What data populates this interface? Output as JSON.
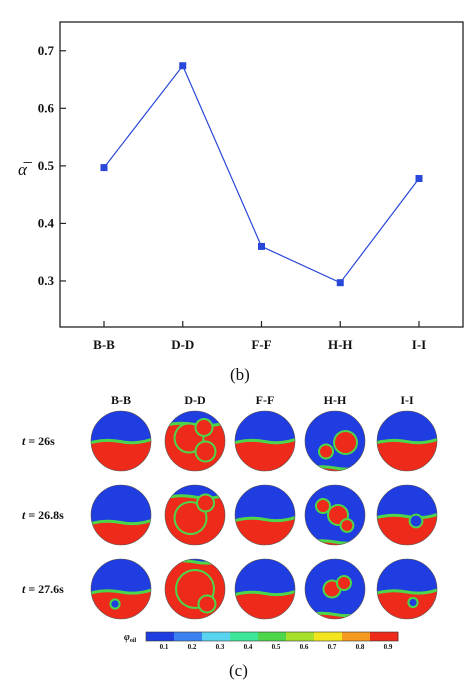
{
  "chart_data": {
    "type": "line",
    "categories": [
      "B-B",
      "D-D",
      "F-F",
      "H-H",
      "I-I"
    ],
    "series": [
      {
        "values": [
          0.497,
          0.674,
          0.36,
          0.297,
          0.478
        ]
      }
    ],
    "ylabel": "α̅",
    "ylim": [
      0.22,
      0.75
    ],
    "yticks": [
      0.3,
      0.4,
      0.5,
      0.6,
      0.7
    ],
    "series_color": "#2947d9",
    "grid": false,
    "panel_label": "(b)"
  },
  "contour_panel": {
    "panel_label": "(c)",
    "columns": [
      "B-B",
      "D-D",
      "F-F",
      "H-H",
      "I-I"
    ],
    "rows": [
      {
        "label_var": "t",
        "label_value": "= 26s"
      },
      {
        "label_var": "t",
        "label_value": "= 26.8s"
      },
      {
        "label_var": "t",
        "label_value": "= 27.6s"
      }
    ],
    "colorbar": {
      "symbol": "φ",
      "subscript": "oil",
      "ticks": [
        "0.1",
        "0.2",
        "0.3",
        "0.4",
        "0.5",
        "0.6",
        "0.7",
        "0.8",
        "0.9"
      ],
      "colors": [
        "#1f3de0",
        "#3b82f0",
        "#59d4f0",
        "#3ee69a",
        "#4ed64a",
        "#a6e02a",
        "#f2e51d",
        "#f59a1f",
        "#ee2a1a"
      ]
    },
    "phase_colors": {
      "water": "#1f3de0",
      "oil": "#ee2a1a",
      "mix": "#4ed64a"
    }
  }
}
